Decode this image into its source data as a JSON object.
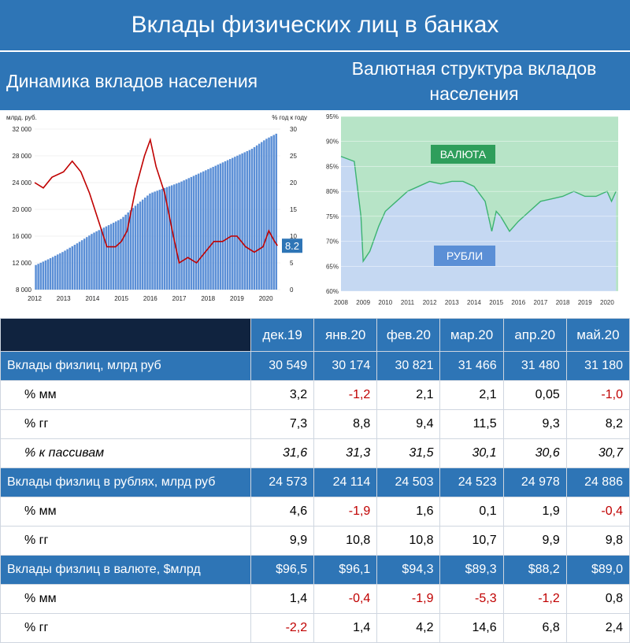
{
  "page": {
    "title": "Вклады физических лиц в банках",
    "left_heading": "Динамика вкладов населения",
    "right_heading": "Валютная структура вкладов населения"
  },
  "chart_data": [
    {
      "type": "bar+line",
      "left_axis_label": "млрд. руб.",
      "right_axis_label": "% год к году",
      "ylim_left": [
        8000,
        32000
      ],
      "yticks_left": [
        "8 000",
        "12 000",
        "16 000",
        "20 000",
        "24 000",
        "28 000",
        "32 000"
      ],
      "ylim_right": [
        0,
        30
      ],
      "yticks_right": [
        "0",
        "5",
        "10",
        "15",
        "20",
        "25",
        "30"
      ],
      "xticks": [
        "2012",
        "2013",
        "2014",
        "2015",
        "2016",
        "2017",
        "2018",
        "2019",
        "2020"
      ],
      "x_start": 2012.0,
      "x_end": 2020.5,
      "last_value_label": "8.2",
      "bar_color": "#5b8fd6",
      "line_color": "#c00000",
      "series": [
        {
          "kind": "bar",
          "axis": "left",
          "x": [
            2012.0,
            2012.5,
            2013.0,
            2013.5,
            2014.0,
            2014.5,
            2015.0,
            2015.5,
            2016.0,
            2016.5,
            2017.0,
            2017.5,
            2018.0,
            2018.5,
            2019.0,
            2019.5,
            2020.0,
            2020.4
          ],
          "values": [
            11600,
            12600,
            13700,
            15000,
            16400,
            17500,
            18600,
            20600,
            22400,
            23200,
            24000,
            25000,
            26000,
            27000,
            28000,
            29000,
            30500,
            31400
          ]
        },
        {
          "kind": "line",
          "axis": "right",
          "x": [
            2012.0,
            2012.3,
            2012.6,
            2013.0,
            2013.3,
            2013.6,
            2013.9,
            2014.2,
            2014.5,
            2014.8,
            2015.0,
            2015.2,
            2015.5,
            2015.8,
            2016.0,
            2016.2,
            2016.5,
            2016.8,
            2017.0,
            2017.3,
            2017.6,
            2017.9,
            2018.2,
            2018.5,
            2018.8,
            2019.0,
            2019.3,
            2019.6,
            2019.9,
            2020.1,
            2020.3,
            2020.4
          ],
          "values": [
            20,
            19,
            21,
            22,
            24,
            22,
            18,
            13,
            8,
            8,
            9,
            11,
            19,
            25,
            28,
            23,
            18,
            10,
            5,
            6,
            5,
            7,
            9,
            9,
            10,
            10,
            8,
            7,
            8,
            11,
            9,
            8.2
          ]
        }
      ]
    },
    {
      "type": "area",
      "ylim": [
        60,
        95
      ],
      "yticks": [
        "60%",
        "65%",
        "70%",
        "75%",
        "80%",
        "85%",
        "90%",
        "95%"
      ],
      "xticks": [
        "2008",
        "2009",
        "2010",
        "2011",
        "2012",
        "2013",
        "2014",
        "2015",
        "2016",
        "2017",
        "2018",
        "2019",
        "2020"
      ],
      "x_start": 2008.0,
      "x_end": 2020.5,
      "labels": {
        "top": "ВАЛЮТА",
        "bottom": "РУБЛИ"
      },
      "colors": {
        "top": "#b7e4c7",
        "bottom": "#c5d8f2",
        "line": "#3cb371",
        "top_label_bg": "#2e9e5b",
        "bottom_label_bg": "#5b8fd6"
      },
      "series": [
        {
          "name": "РУБЛИ",
          "x": [
            2008.0,
            2008.6,
            2008.9,
            2009.0,
            2009.3,
            2009.7,
            2010.0,
            2010.5,
            2011.0,
            2011.5,
            2012.0,
            2012.5,
            2013.0,
            2013.5,
            2014.0,
            2014.5,
            2014.8,
            2015.0,
            2015.2,
            2015.6,
            2016.0,
            2016.5,
            2017.0,
            2017.5,
            2018.0,
            2018.5,
            2019.0,
            2019.5,
            2020.0,
            2020.2,
            2020.4
          ],
          "values": [
            87,
            86,
            75,
            66,
            68,
            73,
            76,
            78,
            80,
            81,
            82,
            81.5,
            82,
            82,
            81,
            78,
            72,
            76,
            75,
            72,
            74,
            76,
            78,
            78.5,
            79,
            80,
            79,
            79,
            80,
            78,
            80
          ]
        }
      ]
    }
  ],
  "table": {
    "headers": [
      "дек.19",
      "янв.20",
      "фев.20",
      "мар.20",
      "апр.20",
      "май.20"
    ],
    "rows": [
      {
        "label": "Вклады физлиц, млрд руб",
        "values": [
          "30 549",
          "30 174",
          "30 821",
          "31 466",
          "31 480",
          "31 180"
        ],
        "style": "blue"
      },
      {
        "label": "% мм",
        "values": [
          "3,2",
          "-1,2",
          "2,1",
          "2,1",
          "0,05",
          "-1,0"
        ],
        "style": "plain"
      },
      {
        "label": "% гг",
        "values": [
          "7,3",
          "8,8",
          "9,4",
          "11,5",
          "9,3",
          "8,2"
        ],
        "style": "plain"
      },
      {
        "label": "% к пассивам",
        "values": [
          "31,6",
          "31,3",
          "31,5",
          "30,1",
          "30,6",
          "30,7"
        ],
        "style": "italic"
      },
      {
        "label": "Вклады физлиц в рублях, млрд руб",
        "values": [
          "24 573",
          "24 114",
          "24 503",
          "24 523",
          "24 978",
          "24 886"
        ],
        "style": "blue"
      },
      {
        "label": "% мм",
        "values": [
          "4,6",
          "-1,9",
          "1,6",
          "0,1",
          "1,9",
          "-0,4"
        ],
        "style": "plain"
      },
      {
        "label": "% гг",
        "values": [
          "9,9",
          "10,8",
          "10,8",
          "10,7",
          "9,9",
          "9,8"
        ],
        "style": "plain"
      },
      {
        "label": "Вклады физлиц в валюте, $млрд",
        "values": [
          "$96,5",
          "$96,1",
          "$94,3",
          "$89,3",
          "$88,2",
          "$89,0"
        ],
        "style": "blue"
      },
      {
        "label": "% мм",
        "values": [
          "1,4",
          "-0,4",
          "-1,9",
          "-5,3",
          "-1,2",
          "0,8"
        ],
        "style": "plain"
      },
      {
        "label": "% гг",
        "values": [
          "-2,2",
          "1,4",
          "4,2",
          "14,6",
          "6,8",
          "2,4"
        ],
        "style": "plain"
      }
    ]
  }
}
